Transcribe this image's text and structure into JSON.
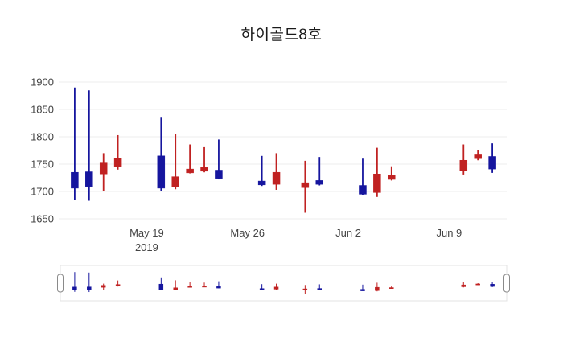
{
  "title": "하이골드8호",
  "chart_data": {
    "type": "candlestick",
    "title": "하이골드8호",
    "xlabel": "",
    "ylabel": "",
    "ylim": [
      1650,
      1900
    ],
    "x_domain": [
      "2019-05-13",
      "2019-06-13"
    ],
    "grid": "horizontal-light",
    "legend": "none",
    "has_rangeslider": true,
    "y_ticks": [
      1650,
      1700,
      1750,
      1800,
      1850,
      1900
    ],
    "x_ticks": [
      {
        "date": "2019-05-19",
        "label": "May 19",
        "sublabel": "2019"
      },
      {
        "date": "2019-05-26",
        "label": "May 26"
      },
      {
        "date": "2019-06-02",
        "label": "Jun 2"
      },
      {
        "date": "2019-06-09",
        "label": "Jun 9"
      }
    ],
    "colors": {
      "increasing": "#c02121",
      "decreasing": "#15159e",
      "grid": "#ececec",
      "text": "#444444",
      "slider_frame": "#e3e3e3",
      "slider_handle_stroke": "#8a8a8a"
    },
    "candles": [
      {
        "date": "2019-05-14",
        "open": 1735,
        "high": 1890,
        "low": 1685,
        "close": 1706
      },
      {
        "date": "2019-05-15",
        "open": 1736,
        "high": 1885,
        "low": 1683,
        "close": 1709
      },
      {
        "date": "2019-05-16",
        "open": 1732,
        "high": 1770,
        "low": 1700,
        "close": 1752
      },
      {
        "date": "2019-05-17",
        "open": 1746,
        "high": 1803,
        "low": 1740,
        "close": 1761
      },
      {
        "date": "2019-05-20",
        "open": 1765,
        "high": 1835,
        "low": 1700,
        "close": 1706
      },
      {
        "date": "2019-05-21",
        "open": 1708,
        "high": 1805,
        "low": 1704,
        "close": 1727
      },
      {
        "date": "2019-05-22",
        "open": 1734,
        "high": 1786,
        "low": 1733,
        "close": 1741
      },
      {
        "date": "2019-05-23",
        "open": 1737,
        "high": 1781,
        "low": 1735,
        "close": 1744
      },
      {
        "date": "2019-05-24",
        "open": 1739,
        "high": 1795,
        "low": 1722,
        "close": 1724
      },
      {
        "date": "2019-05-27",
        "open": 1719,
        "high": 1765,
        "low": 1710,
        "close": 1712
      },
      {
        "date": "2019-05-28",
        "open": 1713,
        "high": 1770,
        "low": 1703,
        "close": 1735
      },
      {
        "date": "2019-05-30",
        "open": 1707,
        "high": 1756,
        "low": 1661,
        "close": 1716
      },
      {
        "date": "2019-05-31",
        "open": 1720,
        "high": 1763,
        "low": 1711,
        "close": 1713
      },
      {
        "date": "2019-06-03",
        "open": 1711,
        "high": 1760,
        "low": 1694,
        "close": 1695
      },
      {
        "date": "2019-06-04",
        "open": 1698,
        "high": 1780,
        "low": 1690,
        "close": 1732
      },
      {
        "date": "2019-06-05",
        "open": 1722,
        "high": 1746,
        "low": 1720,
        "close": 1729
      },
      {
        "date": "2019-06-10",
        "open": 1738,
        "high": 1786,
        "low": 1731,
        "close": 1757
      },
      {
        "date": "2019-06-11",
        "open": 1760,
        "high": 1775,
        "low": 1757,
        "close": 1767
      },
      {
        "date": "2019-06-12",
        "open": 1764,
        "high": 1788,
        "low": 1734,
        "close": 1741
      }
    ]
  }
}
